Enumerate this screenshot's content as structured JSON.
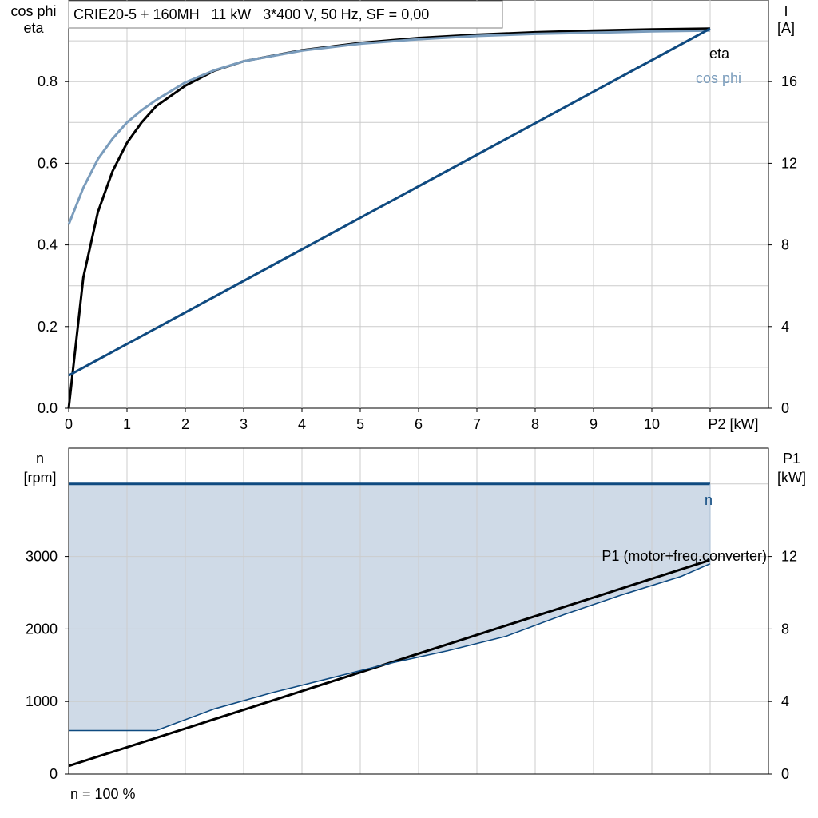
{
  "chart_data": [
    {
      "type": "line",
      "title": "CRIE20-5 + 160MH   11 kW   3*400 V, 50 Hz, SF = 0,00",
      "xlabel": "P2 [kW]",
      "ylabel_left": [
        "cos phi",
        "eta"
      ],
      "ylabel_right": [
        "I",
        "[A]"
      ],
      "xlim": [
        0,
        12
      ],
      "ylim_left": [
        0,
        1.0
      ],
      "ylim_right": [
        0,
        20
      ],
      "x_ticks": [
        "0",
        "1",
        "2",
        "3",
        "4",
        "5",
        "6",
        "7",
        "8",
        "9",
        "10"
      ],
      "y_left_ticks": [
        "0.0",
        "0.2",
        "0.4",
        "0.6",
        "0.8"
      ],
      "y_right_ticks": [
        "0",
        "4",
        "8",
        "12",
        "16"
      ],
      "grid": true,
      "series": [
        {
          "name": "eta",
          "axis": "left",
          "color": "#000000",
          "x": [
            0,
            0.25,
            0.5,
            0.75,
            1.0,
            1.25,
            1.5,
            2.0,
            2.5,
            3,
            4,
            5,
            6,
            7,
            8,
            9,
            10,
            11
          ],
          "y": [
            0,
            0.32,
            0.48,
            0.58,
            0.65,
            0.7,
            0.74,
            0.79,
            0.827,
            0.85,
            0.877,
            0.895,
            0.907,
            0.915,
            0.921,
            0.925,
            0.928,
            0.93
          ]
        },
        {
          "name": "cos phi",
          "axis": "left",
          "color": "#7a9cbc",
          "x": [
            0,
            0.25,
            0.5,
            0.75,
            1.0,
            1.25,
            1.5,
            2.0,
            2.5,
            3,
            4,
            5,
            6,
            7,
            8,
            9,
            10,
            11
          ],
          "y": [
            0.45,
            0.54,
            0.61,
            0.66,
            0.7,
            0.73,
            0.755,
            0.798,
            0.828,
            0.85,
            0.876,
            0.893,
            0.904,
            0.912,
            0.917,
            0.92,
            0.923,
            0.925
          ]
        },
        {
          "name": "I",
          "axis": "right",
          "color": "#0f4a80",
          "x": [
            0,
            11
          ],
          "y": [
            1.6,
            18.6
          ]
        }
      ]
    },
    {
      "type": "area",
      "xlabel": "",
      "ylabel_left": [
        "n",
        "[rpm]"
      ],
      "ylabel_right": [
        "P1",
        "[kW]"
      ],
      "xlim": [
        0,
        12
      ],
      "ylim_left": [
        0,
        4000
      ],
      "ylim_right": [
        0,
        16
      ],
      "y_left_ticks": [
        "0",
        "1000",
        "2000",
        "3000"
      ],
      "y_right_ticks": [
        "0",
        "4",
        "8",
        "12"
      ],
      "grid": true,
      "series": [
        {
          "name": "n",
          "axis": "left",
          "color": "#0f4a80",
          "x": [
            0,
            11
          ],
          "y": [
            4000,
            4000
          ]
        },
        {
          "name": "P1 (motor+freq.converter)",
          "axis": "right",
          "color": "#000000",
          "x": [
            0,
            11
          ],
          "y": [
            0.45,
            11.8
          ]
        },
        {
          "name": "lower boundary",
          "axis": "right",
          "color": "#0f4a80",
          "x": [
            0,
            1.5,
            2.5,
            3.5,
            4.5,
            5.5,
            6.5,
            7.5,
            8.5,
            9.5,
            10.5,
            11
          ],
          "y": [
            2.4,
            2.4,
            3.6,
            4.5,
            5.3,
            6.1,
            6.8,
            7.6,
            8.8,
            9.9,
            10.9,
            11.6
          ]
        }
      ],
      "fill_color": "#cfdae7"
    }
  ],
  "footer": {
    "note": "n = 100 %"
  }
}
